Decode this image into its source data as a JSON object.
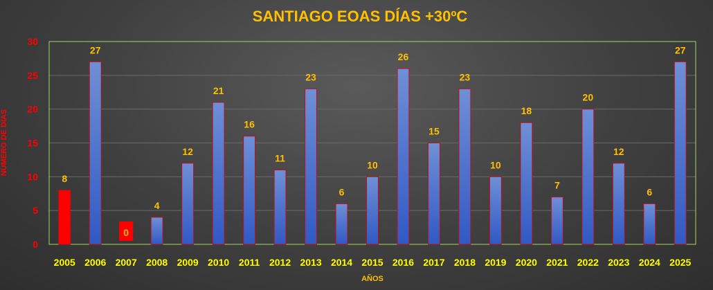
{
  "chart_data": {
    "type": "bar",
    "title": "SANTIAGO EOAS DÍAS +30ºC",
    "xlabel": "AÑOS",
    "ylabel": "NÚMERO DE DÍAS",
    "categories": [
      "2005",
      "2006",
      "2007",
      "2008",
      "2009",
      "2010",
      "2011",
      "2012",
      "2013",
      "2014",
      "2015",
      "2016",
      "2017",
      "2018",
      "2019",
      "2020",
      "2021",
      "2022",
      "2023",
      "2024",
      "2025"
    ],
    "values": [
      8,
      27,
      0,
      4,
      12,
      21,
      16,
      11,
      23,
      6,
      10,
      26,
      15,
      23,
      10,
      18,
      7,
      20,
      12,
      6,
      27
    ],
    "highlighted_categories": [
      "2005",
      "2007"
    ],
    "ylim": [
      0,
      30
    ],
    "yticks": [
      0,
      5,
      10,
      15,
      20,
      25,
      30
    ],
    "grid": true,
    "legend": "none",
    "colors": {
      "bar_fill_top": "#6f8fd6",
      "bar_fill_bottom": "#3159c4",
      "bar_stroke": "#c0101a",
      "highlight_fill": "#ff0000",
      "title": "#ffc000",
      "data_label": "#ffc000",
      "data_label_on_red": "#ffc000",
      "x_tick_label": "#ffff00",
      "y_tick_label": "#ff0000",
      "axis_title": "#ffc000",
      "ylabel_color": "#ff0000",
      "plot_border": "#a8d46a",
      "grid": "#6a6a6a"
    }
  }
}
